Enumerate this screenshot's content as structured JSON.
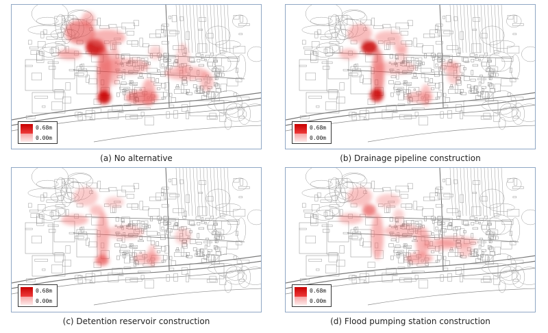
{
  "legend": {
    "max_label": "0.68m",
    "min_label": "0.00m",
    "max_color": "#d40000",
    "min_color": "#fde3e3"
  },
  "panels": [
    {
      "caption": "(a) No alternative",
      "scenario": "none"
    },
    {
      "caption": "(b) Drainage pipeline construction",
      "scenario": "pipeline"
    },
    {
      "caption": "(c) Detention reservoir construction",
      "scenario": "reservoir"
    },
    {
      "caption": "(d) Flood pumping station construction",
      "scenario": "pumping"
    }
  ]
}
